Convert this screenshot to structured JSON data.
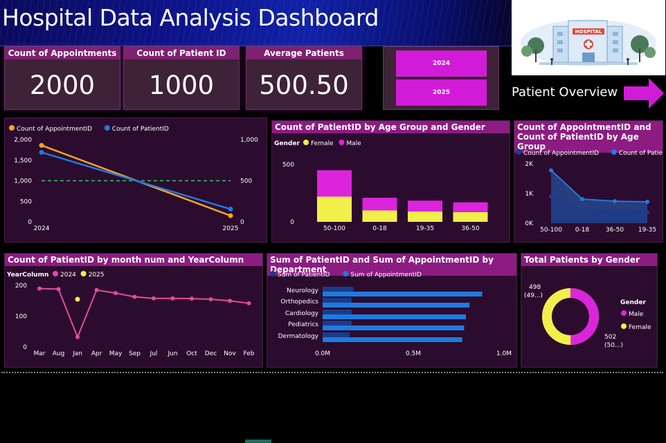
{
  "header": {
    "title": "Hospital Data Analysis Dashboard"
  },
  "illustration": {
    "sign_text": "HOSPITAL"
  },
  "kpis": [
    {
      "label": "Count of Appointments",
      "value": "2000"
    },
    {
      "label": "Count of Patient ID",
      "value": "1000"
    },
    {
      "label": "Average Patients",
      "value": "500.50"
    }
  ],
  "year_slicer": {
    "options": [
      "2024",
      "2025"
    ]
  },
  "nav": {
    "label": "Patient Overview"
  },
  "colors": {
    "accent": "#d21bd8",
    "panel_header": "#8c1c82",
    "orange": "#f5a623",
    "blue": "#1f7ae0",
    "dark_blue": "#1a3c8a",
    "yellow": "#f2ef4a",
    "magenta": "#dc24dc",
    "pink": "#e24aa8",
    "green_dash": "#2ecc71"
  },
  "chart_data": [
    {
      "type": "line",
      "legend": [
        "Count of AppointmentID",
        "Count of PatientID"
      ],
      "x": [
        "2024",
        "2025"
      ],
      "series": [
        {
          "name": "Count of AppointmentID",
          "values": [
            1860,
            150
          ],
          "axis": "left"
        },
        {
          "name": "Count of PatientID",
          "values": [
            845,
            155
          ],
          "axis": "right"
        }
      ],
      "reference_line": 1000,
      "left_ticks": [
        "2,000",
        "1,500",
        "1,000",
        "500",
        "0"
      ],
      "right_ticks": [
        "1,000",
        "500",
        "0"
      ],
      "ylim_left": [
        0,
        2000
      ],
      "ylim_right": [
        0,
        1000
      ]
    },
    {
      "type": "bar",
      "title": "Count of PatientID by Age Group and Gender",
      "legend_title": "Gender",
      "legend": [
        "Female",
        "Male"
      ],
      "categories": [
        "50-100",
        "0-18",
        "19-35",
        "36-50"
      ],
      "series": [
        {
          "name": "Female",
          "values": [
            220,
            100,
            90,
            85
          ]
        },
        {
          "name": "Male",
          "values": [
            230,
            110,
            95,
            85
          ]
        }
      ],
      "ticks": [
        "500",
        "0"
      ],
      "ylim": [
        0,
        500
      ]
    },
    {
      "type": "area",
      "title": "Count of AppointmentID and Count of PatientID by Age Group",
      "legend": [
        "Count of AppointmentID",
        "Count of PatientID"
      ],
      "categories": [
        "50-100",
        "0-18",
        "36-50",
        "19-35"
      ],
      "series": [
        {
          "name": "Count of AppointmentID",
          "values": [
            900,
            420,
            370,
            360
          ]
        },
        {
          "name": "Count of PatientID",
          "values": [
            1780,
            810,
            740,
            720
          ]
        }
      ],
      "ticks": [
        "2K",
        "1K",
        "0K"
      ],
      "ylim": [
        0,
        2000
      ]
    },
    {
      "type": "line",
      "title": "Count of PatientID by month num and YearColumn",
      "legend_title": "YearColumn",
      "legend": [
        "2024",
        "2025"
      ],
      "categories": [
        "Mar",
        "Aug",
        "Jan",
        "Apr",
        "May",
        "Sep",
        "Jul",
        "Jun",
        "Oct",
        "Dec",
        "Nov",
        "Feb"
      ],
      "series": [
        {
          "name": "2024",
          "values": [
            190,
            188,
            32,
            185,
            175,
            163,
            158,
            158,
            157,
            155,
            150,
            142
          ]
        },
        {
          "name": "2025",
          "values": [
            null,
            null,
            155,
            null,
            null,
            null,
            null,
            null,
            null,
            null,
            null,
            null
          ]
        }
      ],
      "ticks": [
        "200",
        "100",
        "0"
      ],
      "ylim": [
        0,
        200
      ]
    },
    {
      "type": "bar",
      "title": "Sum of PatientID and Sum of AppointmentID by Department",
      "legend": [
        "Sum of PatientID",
        "Sum of AppointmentID"
      ],
      "categories": [
        "Neurology",
        "Orthopedics",
        "Cardiology",
        "Pediatrics",
        "Dermatology"
      ],
      "series": [
        {
          "name": "Sum of PatientID",
          "values": [
            0.17,
            0.16,
            0.16,
            0.16,
            0.15
          ]
        },
        {
          "name": "Sum of AppointmentID",
          "values": [
            0.88,
            0.81,
            0.79,
            0.78,
            0.77
          ]
        }
      ],
      "ticks": [
        "0.0M",
        "0.5M",
        "1.0M"
      ],
      "xlim": [
        0,
        1.0
      ]
    },
    {
      "type": "pie",
      "title": "Total Patients by Gender",
      "legend_title": "Gender",
      "legend": [
        "Male",
        "Female"
      ],
      "values": [
        498,
        502
      ],
      "labels": [
        {
          "value": "498",
          "pct": "(49...)"
        },
        {
          "value": "502",
          "pct": "(50...)"
        }
      ]
    }
  ]
}
